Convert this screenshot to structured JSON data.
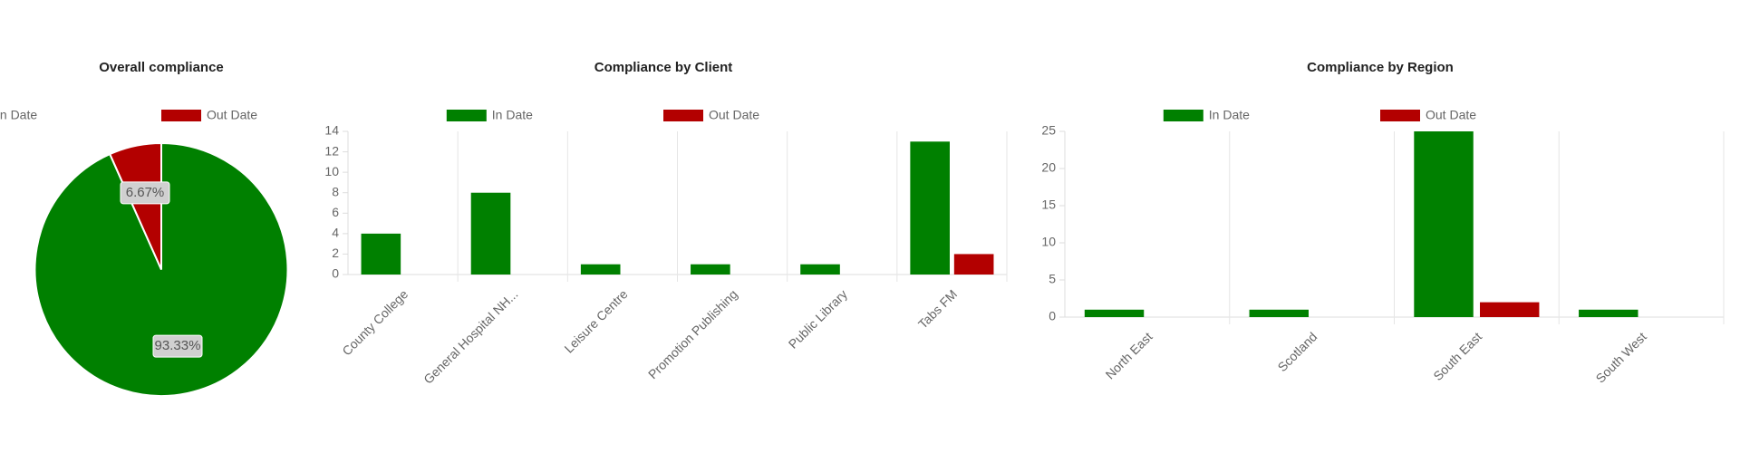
{
  "chart_data": [
    {
      "type": "pie",
      "title": "Overall compliance",
      "categories": [
        "In Date",
        "Out Date"
      ],
      "values": [
        93.33,
        6.67
      ],
      "value_labels": [
        "93.33%",
        "6.67%"
      ],
      "colors": [
        "#008000",
        "#b30000"
      ]
    },
    {
      "type": "bar",
      "title": "Compliance by Client",
      "categories": [
        "County College",
        "General Hospital NH...",
        "Leisure Centre",
        "Promotion Publishing",
        "Public Library",
        "Tabs FM"
      ],
      "series": [
        {
          "name": "In Date",
          "color": "#008000",
          "values": [
            4,
            8,
            1,
            1,
            1,
            13
          ]
        },
        {
          "name": "Out Date",
          "color": "#b30000",
          "values": [
            0,
            0,
            0,
            0,
            0,
            2
          ]
        }
      ],
      "ylim": [
        0,
        14
      ],
      "yticks": [
        0,
        2,
        4,
        6,
        8,
        10,
        12,
        14
      ],
      "grid": true
    },
    {
      "type": "bar",
      "title": "Compliance by Region",
      "categories": [
        "North East",
        "Scotland",
        "South East",
        "South West"
      ],
      "series": [
        {
          "name": "In Date",
          "color": "#008000",
          "values": [
            1,
            1,
            25,
            1
          ]
        },
        {
          "name": "Out Date",
          "color": "#b30000",
          "values": [
            0,
            0,
            2,
            0
          ]
        }
      ],
      "ylim": [
        0,
        25
      ],
      "yticks": [
        0,
        5,
        10,
        15,
        20,
        25
      ],
      "grid": true
    }
  ]
}
